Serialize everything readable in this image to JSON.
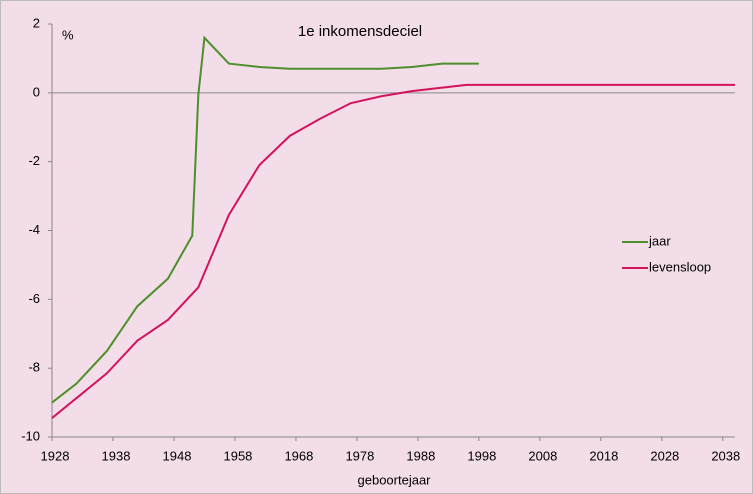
{
  "chart_data": {
    "type": "line",
    "title": "1e inkomensdeciel",
    "y_label": "%",
    "x_label": "geboortejaar",
    "xlim": [
      1928,
      2040
    ],
    "ylim": [
      -10,
      2
    ],
    "xticks": [
      1928,
      1938,
      1948,
      1958,
      1968,
      1978,
      1988,
      1998,
      2008,
      2018,
      2028,
      2038
    ],
    "yticks": [
      -10,
      -8,
      -6,
      -4,
      -2,
      0,
      2
    ],
    "legend": "right",
    "series": [
      {
        "name": "jaar",
        "color": "#4e8f2a",
        "x": [
          1928,
          1932,
          1937,
          1942,
          1947,
          1951,
          1952,
          1953,
          1957,
          1962,
          1967,
          1972,
          1977,
          1982,
          1987,
          1992,
          1998
        ],
        "values": [
          -9.0,
          -8.45,
          -7.5,
          -6.2,
          -5.4,
          -4.15,
          -0.05,
          1.6,
          0.85,
          0.75,
          0.7,
          0.7,
          0.7,
          0.7,
          0.75,
          0.85,
          0.85
        ]
      },
      {
        "name": "levensloop",
        "color": "#d4145a",
        "x": [
          1928,
          1937,
          1942,
          1947,
          1952,
          1957,
          1962,
          1967,
          1972,
          1977,
          1982,
          1987,
          1992,
          1996,
          2040
        ],
        "values": [
          -9.45,
          -8.15,
          -7.2,
          -6.6,
          -5.65,
          -3.55,
          -2.1,
          -1.25,
          -0.75,
          -0.3,
          -0.1,
          0.05,
          0.15,
          0.23,
          0.23
        ]
      }
    ]
  }
}
